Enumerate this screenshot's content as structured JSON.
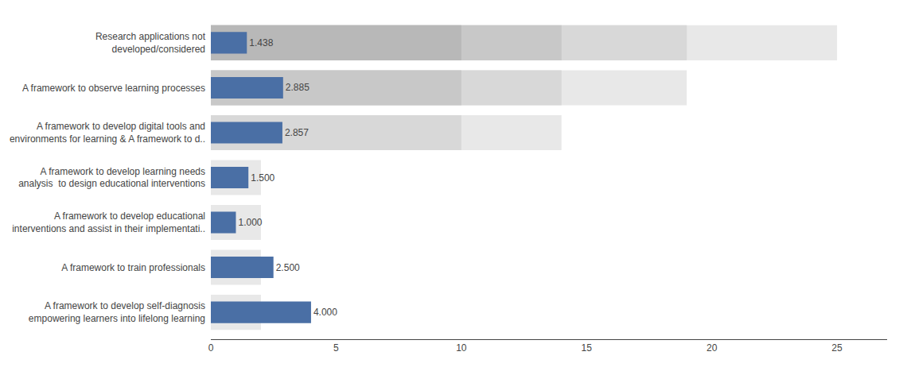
{
  "chart_data": {
    "type": "bar",
    "orientation": "horizontal",
    "categories": [
      "Research applications not\ndeveloped/considered",
      "A framework to observe learning processes",
      "A framework to develop digital tools and\nenvironments for learning & A framework to d..",
      "A framework to develop learning needs\nanalysis  to design educational interventions",
      "A framework to develop educational\ninterventions and assist in their implementati..",
      "A framework to train professionals",
      "A framework to develop self-diagnosis\nempowering learners into lifelong learning"
    ],
    "series": [
      {
        "color": "#e8e8e8",
        "values": [
          25,
          19,
          14,
          2,
          2,
          2,
          2
        ]
      },
      {
        "color": "#d8d8d8",
        "values": [
          19,
          14,
          10,
          null,
          null,
          null,
          null
        ]
      },
      {
        "color": "#c8c8c8",
        "values": [
          14,
          10,
          null,
          null,
          null,
          null,
          null
        ]
      },
      {
        "color": "#b8b8b8",
        "values": [
          10,
          null,
          null,
          null,
          null,
          null,
          null
        ]
      },
      {
        "color": "#4a6fa5",
        "values": [
          1.438,
          2.885,
          2.857,
          1.5,
          1.0,
          2.5,
          4.0
        ],
        "value_labels": [
          "1.438",
          "2.885",
          "2.857",
          "1.500",
          "1.000",
          "2.500",
          "4.000"
        ],
        "data_labels": true
      }
    ],
    "xlim": [
      0,
      27
    ],
    "xticks": [
      0,
      5,
      10,
      15,
      20,
      25
    ],
    "grid": false
  }
}
